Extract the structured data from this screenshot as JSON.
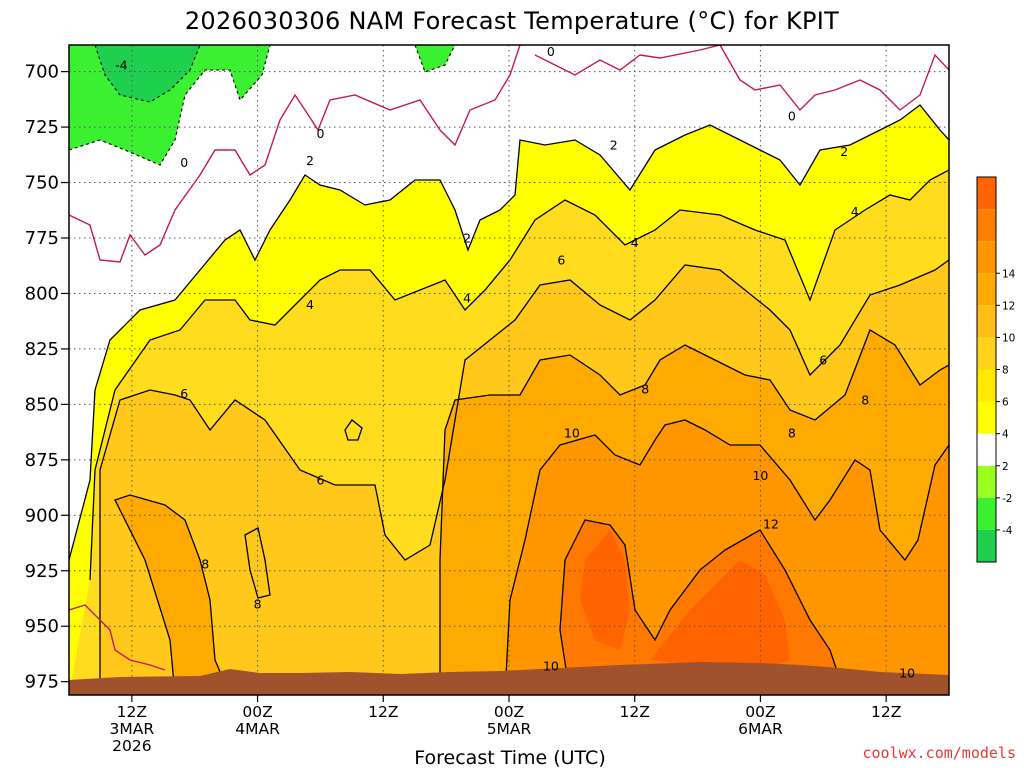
{
  "chart_data": {
    "type": "contour",
    "title": "2026030306 NAM Forecast Temperature (°C) for KPIT",
    "xlabel": "Forecast Time (UTC)",
    "ylabel": "",
    "credit": "coolwx.com/models",
    "xlim_hours_from_start": [
      0,
      84
    ],
    "ylim_hpa": [
      981,
      688
    ],
    "x_ticks": [
      {
        "hour": 6,
        "lines": [
          "12Z",
          "3MAR",
          "2026"
        ]
      },
      {
        "hour": 18,
        "lines": [
          "00Z",
          "4MAR"
        ]
      },
      {
        "hour": 30,
        "lines": [
          "12Z"
        ]
      },
      {
        "hour": 42,
        "lines": [
          "00Z",
          "5MAR"
        ]
      },
      {
        "hour": 54,
        "lines": [
          "12Z"
        ]
      },
      {
        "hour": 66,
        "lines": [
          "00Z",
          "6MAR"
        ]
      },
      {
        "hour": 78,
        "lines": [
          "12Z"
        ]
      }
    ],
    "y_ticks": [
      700,
      725,
      750,
      775,
      800,
      825,
      850,
      875,
      900,
      925,
      950,
      975
    ],
    "grid": true,
    "colorbar": {
      "placement": "right",
      "levels": [
        -16,
        -14,
        -12,
        -10,
        -8,
        -6,
        -4,
        -2,
        2,
        4,
        6,
        8,
        10,
        12,
        14,
        16
      ],
      "colors": [
        "#1fd04f",
        "#3bf030",
        "#99ff1e",
        "#ffffff",
        "#ffff00",
        "#ffea00",
        "#ffd21c",
        "#ffbe16",
        "#ffaa00",
        "#ff9600",
        "#ff7d00",
        "#ff6400"
      ],
      "tick_labels": [
        "-4",
        "-2",
        "2",
        "4",
        "6",
        "8",
        "10",
        "12",
        "14"
      ]
    },
    "contour_labels": [
      {
        "text": "-4",
        "hour": 5,
        "hpa": 697
      },
      {
        "text": "0",
        "hour": 11,
        "hpa": 741
      },
      {
        "text": "0",
        "hour": 24,
        "hpa": 728
      },
      {
        "text": "2",
        "hour": 23,
        "hpa": 740
      },
      {
        "text": "0",
        "hour": 46,
        "hpa": 691
      },
      {
        "text": "0",
        "hour": 69,
        "hpa": 720
      },
      {
        "text": "2",
        "hour": 52,
        "hpa": 733
      },
      {
        "text": "2",
        "hour": 74,
        "hpa": 736
      },
      {
        "text": "2",
        "hour": 38,
        "hpa": 775
      },
      {
        "text": "4",
        "hour": 23,
        "hpa": 805
      },
      {
        "text": "4",
        "hour": 38,
        "hpa": 802
      },
      {
        "text": "4",
        "hour": 54,
        "hpa": 777
      },
      {
        "text": "4",
        "hour": 75,
        "hpa": 763
      },
      {
        "text": "6",
        "hour": 11,
        "hpa": 845
      },
      {
        "text": "6",
        "hour": 47,
        "hpa": 785
      },
      {
        "text": "6",
        "hour": 72,
        "hpa": 830
      },
      {
        "text": "6",
        "hour": 24,
        "hpa": 884
      },
      {
        "text": "8",
        "hour": 13,
        "hpa": 922
      },
      {
        "text": "8",
        "hour": 18,
        "hpa": 940
      },
      {
        "text": "8",
        "hour": 55,
        "hpa": 843
      },
      {
        "text": "8",
        "hour": 69,
        "hpa": 863
      },
      {
        "text": "8",
        "hour": 76,
        "hpa": 848
      },
      {
        "text": "10",
        "hour": 48,
        "hpa": 863
      },
      {
        "text": "10",
        "hour": 66,
        "hpa": 882
      },
      {
        "text": "10",
        "hour": 46,
        "hpa": 968
      },
      {
        "text": "10",
        "hour": 80,
        "hpa": 971
      },
      {
        "text": "12",
        "hour": 67,
        "hpa": 904
      }
    ],
    "terrain_color": "#a0522d"
  }
}
